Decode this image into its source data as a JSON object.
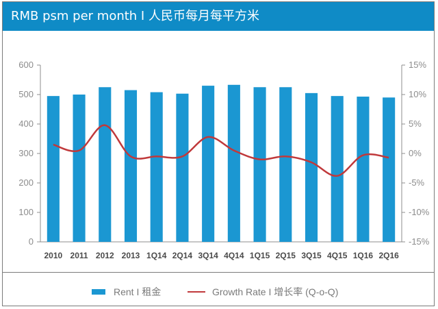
{
  "title": "RMB psm per month I 人民币每月每平方米",
  "legend": {
    "rent_label": "Rent I 租金",
    "growth_label": "Growth Rate I 增长率 (Q-o-Q)"
  },
  "colors": {
    "bar": "#1b97d2",
    "line": "#c0393b",
    "header": "#0f8bc6"
  },
  "chart_data": {
    "type": "bar+line",
    "categories": [
      "2010",
      "2011",
      "2012",
      "2013",
      "1Q14",
      "2Q14",
      "3Q14",
      "4Q14",
      "1Q15",
      "2Q15",
      "3Q15",
      "4Q15",
      "1Q16",
      "2Q16"
    ],
    "series": [
      {
        "name": "Rent I 租金",
        "type": "bar",
        "axis": "left",
        "values": [
          495,
          500,
          525,
          515,
          508,
          503,
          530,
          533,
          525,
          525,
          505,
          495,
          493,
          490
        ]
      },
      {
        "name": "Growth Rate I 增长率 (Q-o-Q)",
        "type": "line",
        "axis": "right",
        "values": [
          1.5,
          0.5,
          4.8,
          -0.5,
          -0.5,
          -0.5,
          2.8,
          0.5,
          -1.0,
          -0.5,
          -1.5,
          -3.8,
          -0.3,
          -0.7
        ]
      }
    ],
    "ylim_left": [
      0,
      600
    ],
    "yticks_left": [
      "0",
      "100",
      "200",
      "300",
      "400",
      "500",
      "600"
    ],
    "ylim_right": [
      -15,
      15
    ],
    "yticks_right": [
      "-15%",
      "-10%",
      "-5%",
      "0%",
      "5%",
      "10%",
      "15%"
    ],
    "grid": false,
    "legend_position": "bottom"
  }
}
